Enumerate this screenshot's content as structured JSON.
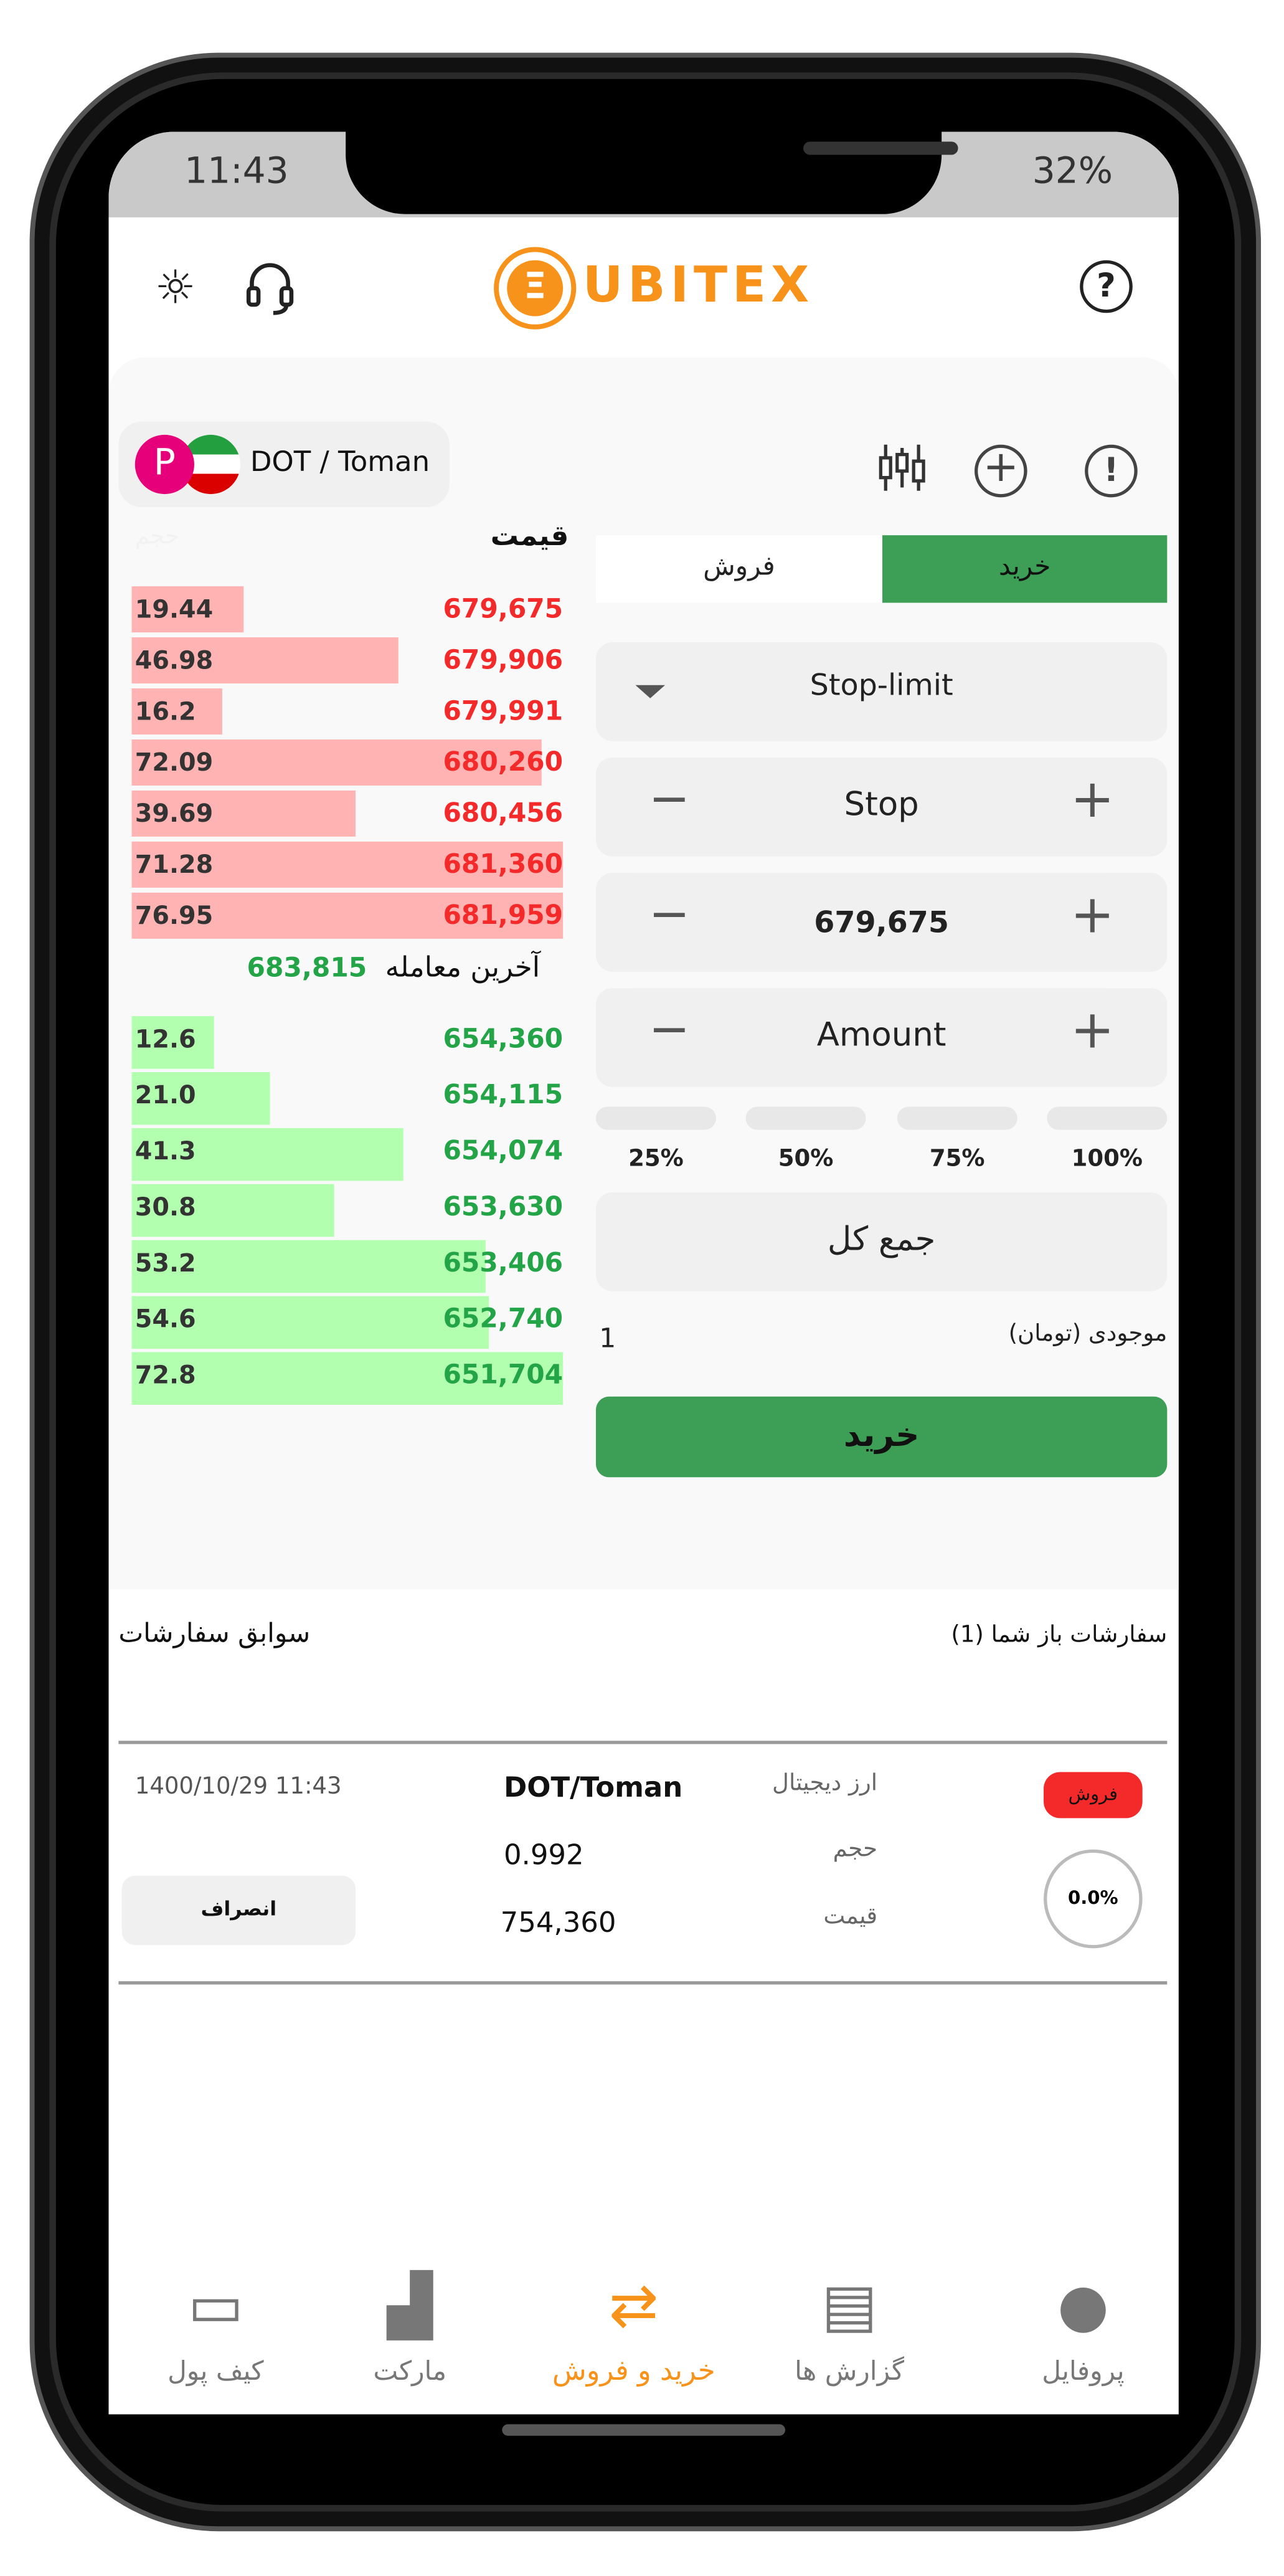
{
  "status_bar": {
    "time": "11:43",
    "battery": "32%"
  },
  "header": {
    "logo_text": "UBITEX",
    "icons": [
      "sun-icon",
      "headset-icon",
      "help-icon"
    ]
  },
  "pair": {
    "label": "DOT / Toman"
  },
  "order_book": {
    "header_price": "قیمت",
    "header_volume": "حجم",
    "asks": [
      {
        "volume": "19.44",
        "price": "679,675",
        "fill": 0.26
      },
      {
        "volume": "46.98",
        "price": "679,906",
        "fill": 0.62
      },
      {
        "volume": "16.2",
        "price": "679,991",
        "fill": 0.21
      },
      {
        "volume": "72.09",
        "price": "680,260",
        "fill": 0.95
      },
      {
        "volume": "39.69",
        "price": "680,456",
        "fill": 0.52
      },
      {
        "volume": "71.28",
        "price": "681,360",
        "fill": 1.0
      },
      {
        "volume": "76.95",
        "price": "681,959",
        "fill": 1.0
      }
    ],
    "last_trade_label": "آخرین معامله",
    "last_trade_price": "683,815",
    "bids": [
      {
        "volume": "12.6",
        "price": "654,360",
        "fill": 0.19
      },
      {
        "volume": "21.0",
        "price": "654,115",
        "fill": 0.32
      },
      {
        "volume": "41.3",
        "price": "654,074",
        "fill": 0.63
      },
      {
        "volume": "30.8",
        "price": "653,630",
        "fill": 0.47
      },
      {
        "volume": "53.2",
        "price": "653,406",
        "fill": 0.82
      },
      {
        "volume": "54.6",
        "price": "652,740",
        "fill": 0.83
      },
      {
        "volume": "72.8",
        "price": "651,704",
        "fill": 1.0
      }
    ]
  },
  "form": {
    "tab_buy": "خرید",
    "tab_sell": "فروش",
    "order_type": "Stop-limit",
    "stop_placeholder": "Stop",
    "price_value": "679,675",
    "amount_placeholder": "Amount",
    "percents": [
      "25%",
      "50%",
      "75%",
      "100%"
    ],
    "total_placeholder": "جمع کل",
    "balance_label": "موجودی (تومان)",
    "balance_value": "1",
    "submit": "خرید"
  },
  "orders": {
    "history_label": "سوابق سفارشات",
    "open_label": "سفارشات باز شما (1)",
    "item": {
      "side": "فروش",
      "progress": "0.0%",
      "currency_label": "ارز دیجیتال",
      "currency": "DOT/Toman",
      "volume_label": "حجم",
      "volume": "0.992",
      "price_label": "قیمت",
      "price": "754,360",
      "datetime": "1400/10/29 11:43",
      "cancel": "انصراف"
    }
  },
  "bottom_nav": [
    {
      "label": "کیف پول",
      "icon": "wallet-icon"
    },
    {
      "label": "مارکت",
      "icon": "market-chart-icon"
    },
    {
      "label": "خرید و فروش",
      "icon": "shuffle-icon",
      "active": true
    },
    {
      "label": "گزارش ها",
      "icon": "report-icon"
    },
    {
      "label": "پروفایل",
      "icon": "user-icon"
    }
  ],
  "colors": {
    "accent": "#f7931a",
    "buy": "#3d9e56",
    "sell": "#ff2a2a",
    "ask_bar": "#ffb3b3",
    "bid_bar": "#b3ffb0"
  }
}
